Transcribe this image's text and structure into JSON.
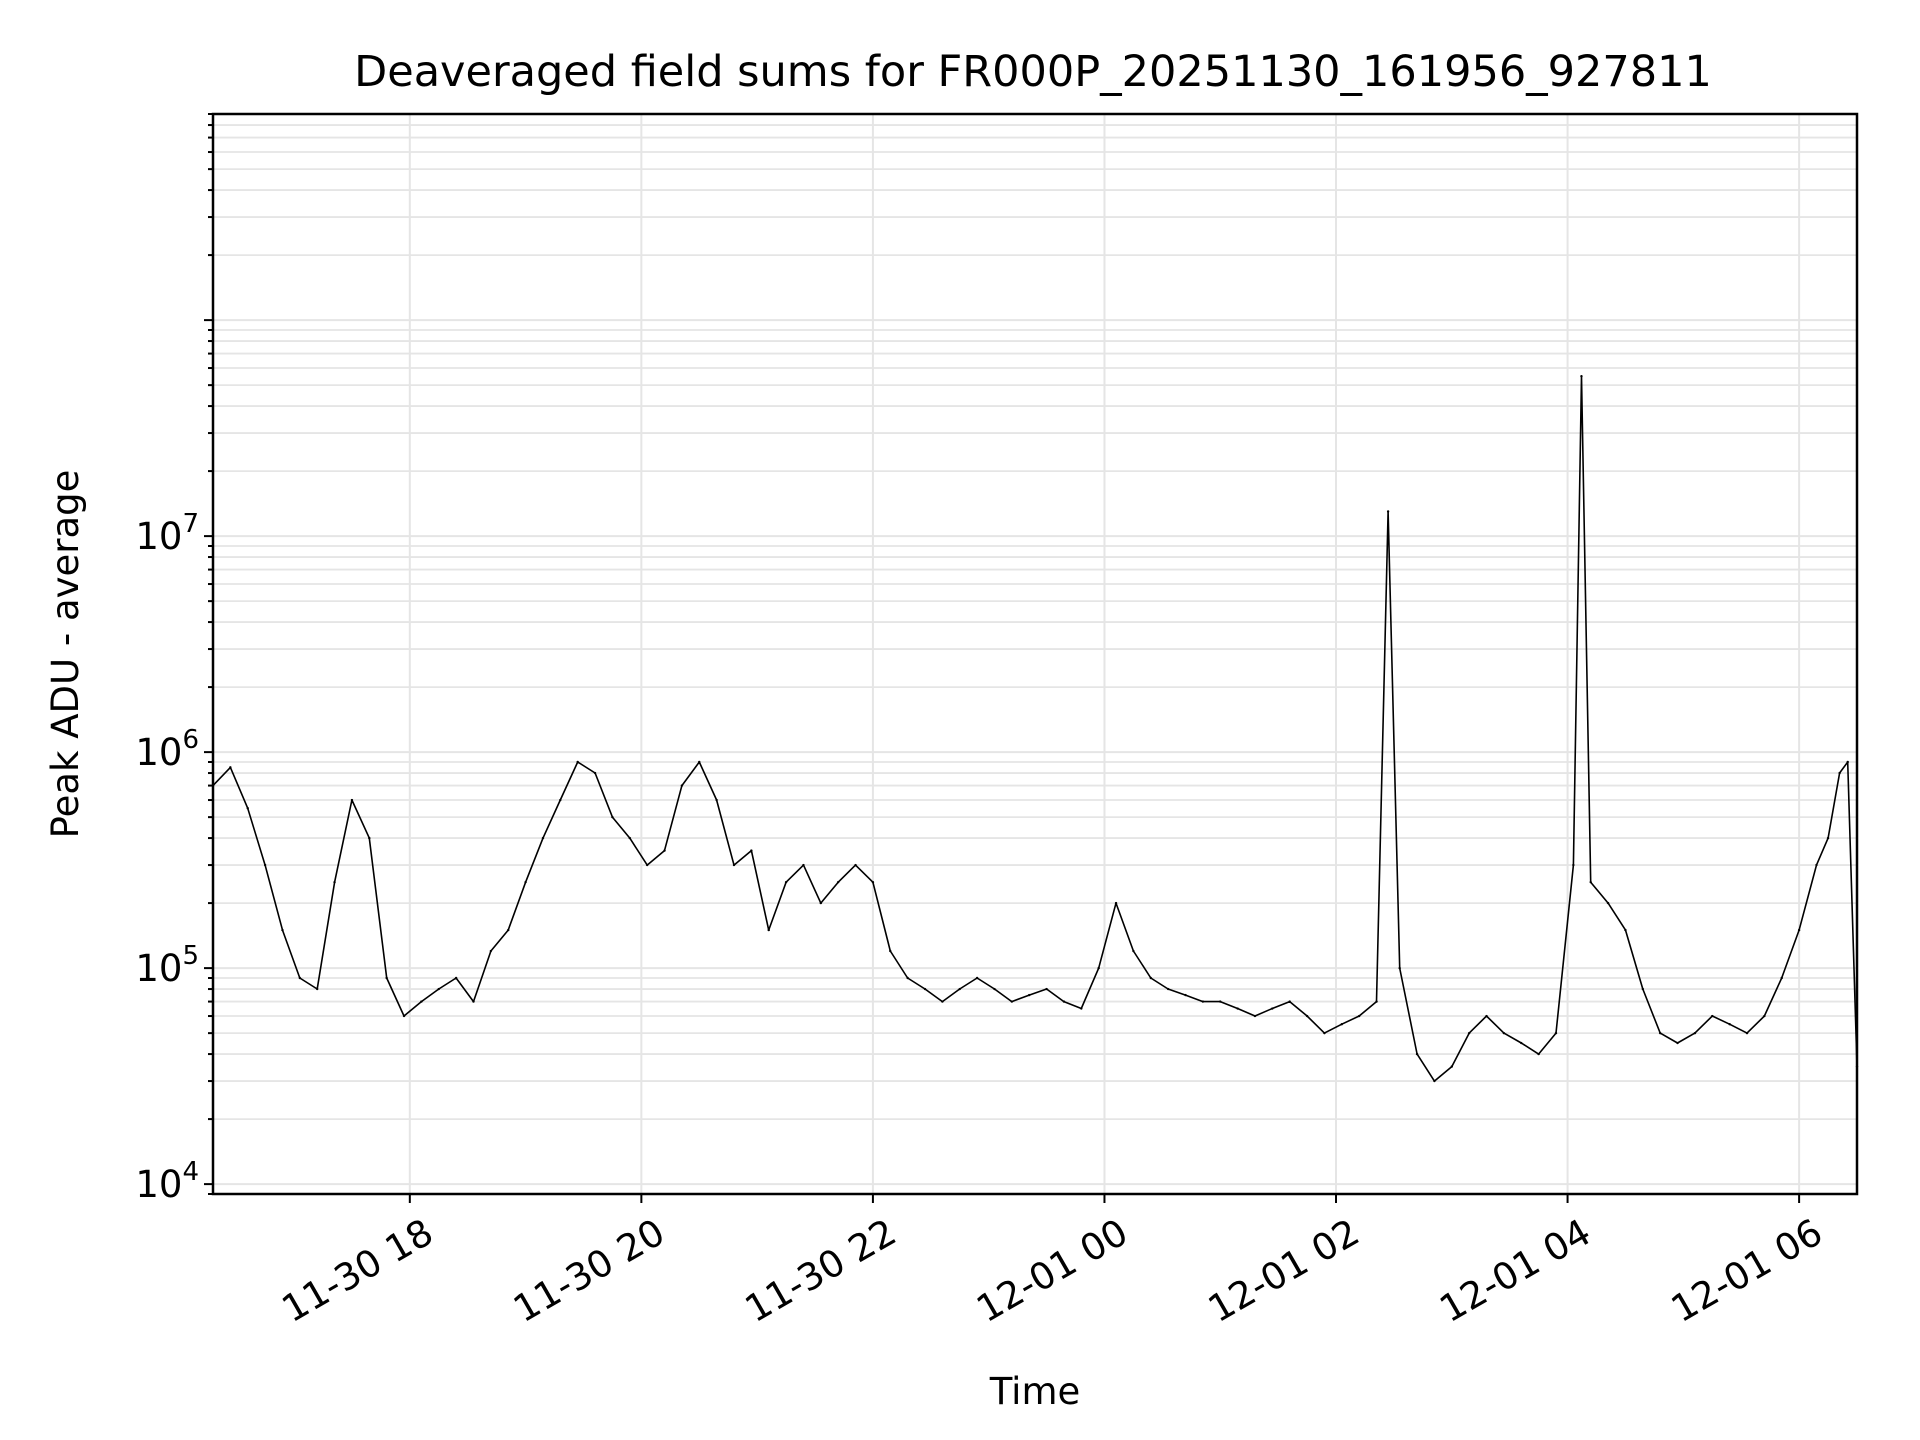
{
  "chart_data": {
    "type": "line",
    "title": "Deaveraged field sums for FR000P_20251130_161956_927811",
    "xlabel": "Time",
    "ylabel": "Peak ADU - average",
    "yscale": "log",
    "ylim": [
      9000,
      900000000
    ],
    "xlim_hours": [
      16.3,
      30.5
    ],
    "grid": true,
    "x_tick_labels": [
      "11-30 18",
      "11-30 20",
      "11-30 22",
      "12-01 00",
      "12-01 02",
      "12-01 04",
      "12-01 06"
    ],
    "x_tick_hours": [
      18,
      20,
      22,
      24,
      26,
      28,
      30
    ],
    "y_ticks": [
      {
        "base": "10",
        "exp": "4",
        "value": 10000
      },
      {
        "base": "10",
        "exp": "5",
        "value": 100000
      },
      {
        "base": "10",
        "exp": "6",
        "value": 1000000
      },
      {
        "base": "10",
        "exp": "7",
        "value": 10000000
      }
    ],
    "line_color": "#000000",
    "grid_color": "#e5e5e5",
    "series": [
      {
        "name": "Peak ADU - average",
        "x_hours": [
          16.3,
          16.45,
          16.6,
          16.75,
          16.9,
          17.05,
          17.2,
          17.35,
          17.5,
          17.65,
          17.8,
          17.95,
          18.1,
          18.25,
          18.4,
          18.55,
          18.7,
          18.85,
          19.0,
          19.15,
          19.3,
          19.45,
          19.6,
          19.75,
          19.9,
          20.05,
          20.2,
          20.35,
          20.5,
          20.65,
          20.8,
          20.95,
          21.1,
          21.25,
          21.4,
          21.55,
          21.7,
          21.85,
          22.0,
          22.15,
          22.3,
          22.45,
          22.6,
          22.75,
          22.9,
          23.05,
          23.2,
          23.35,
          23.5,
          23.65,
          23.8,
          23.95,
          24.1,
          24.25,
          24.4,
          24.55,
          24.7,
          24.85,
          25.0,
          25.15,
          25.3,
          25.45,
          25.6,
          25.75,
          25.9,
          26.05,
          26.2,
          26.35,
          26.45,
          26.55,
          26.7,
          26.85,
          27.0,
          27.15,
          27.3,
          27.45,
          27.6,
          27.75,
          27.9,
          28.05,
          28.12,
          28.2,
          28.35,
          28.5,
          28.65,
          28.8,
          28.95,
          29.1,
          29.25,
          29.4,
          29.55,
          29.7,
          29.85,
          30.0,
          30.15,
          30.25,
          30.35,
          30.42,
          30.5
        ],
        "values": [
          700000,
          850000,
          550000,
          300000,
          150000,
          90000,
          80000,
          250000,
          600000,
          400000,
          90000,
          60000,
          70000,
          80000,
          90000,
          70000,
          120000,
          150000,
          250000,
          400000,
          600000,
          900000,
          800000,
          500000,
          400000,
          300000,
          350000,
          700000,
          900000,
          600000,
          300000,
          350000,
          150000,
          250000,
          300000,
          200000,
          250000,
          300000,
          250000,
          120000,
          90000,
          80000,
          70000,
          80000,
          90000,
          80000,
          70000,
          75000,
          80000,
          70000,
          65000,
          100000,
          200000,
          120000,
          90000,
          80000,
          75000,
          70000,
          70000,
          65000,
          60000,
          65000,
          70000,
          60000,
          50000,
          55000,
          60000,
          70000,
          13000000,
          100000,
          40000,
          30000,
          35000,
          50000,
          60000,
          50000,
          45000,
          40000,
          50000,
          300000,
          55000000,
          250000,
          200000,
          150000,
          80000,
          50000,
          45000,
          50000,
          60000,
          55000,
          50000,
          60000,
          90000,
          150000,
          300000,
          400000,
          800000,
          900000,
          35000
        ]
      }
    ]
  }
}
